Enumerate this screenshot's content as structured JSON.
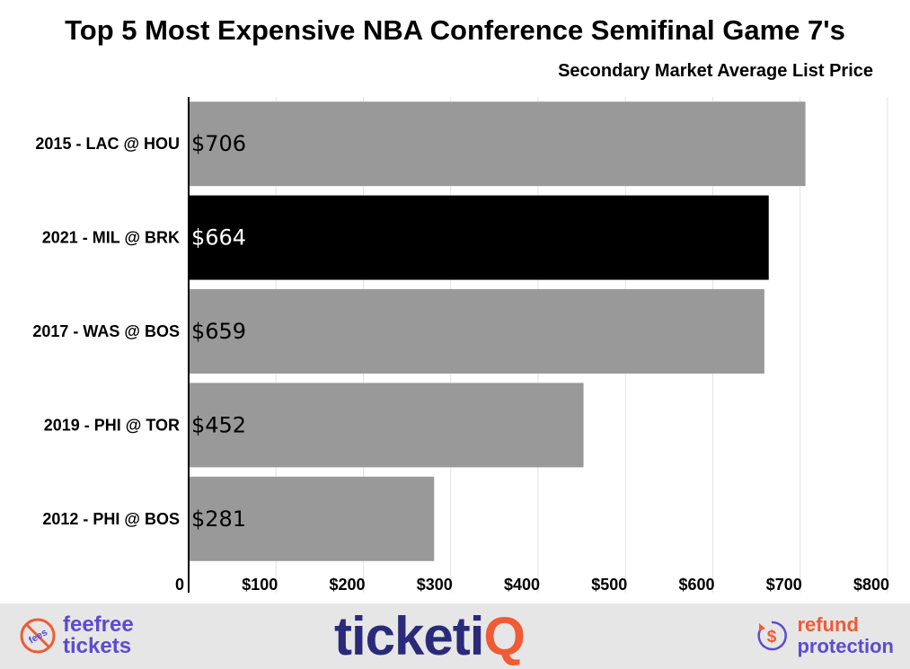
{
  "chart_data": {
    "type": "bar",
    "orientation": "horizontal",
    "title": "Top 5 Most Expensive NBA Conference Semifinal Game 7's",
    "subtitle": "Secondary Market Average List Price",
    "categories": [
      "2015 - LAC @ HOU",
      "2021 - MIL @ BRK",
      "2017 - WAS @ BOS",
      "2019 - PHI @ TOR",
      "2012 - PHI @ BOS"
    ],
    "values": [
      706,
      664,
      659,
      452,
      281
    ],
    "value_labels": [
      "$706",
      "$664",
      "$659",
      "$452",
      "$281"
    ],
    "highlight_index": 1,
    "colors": {
      "bar": "#999999",
      "highlight": "#000000",
      "grid": "#e3e3e3"
    },
    "xlim": [
      0,
      800
    ],
    "xticks": [
      0,
      100,
      200,
      300,
      400,
      500,
      600,
      700,
      800
    ],
    "xtick_labels": [
      "0",
      "$100",
      "$200",
      "$300",
      "$400",
      "$500",
      "$600",
      "$700",
      "$800"
    ],
    "grid": true,
    "legend": "none"
  },
  "footer": {
    "fee_free": {
      "icon": "no-fees-icon",
      "icon_text": "fees",
      "line1": "feefree",
      "line2": "tickets"
    },
    "brand": {
      "main": "ticketi",
      "accent": "Q"
    },
    "refund": {
      "icon": "dollar-refund-icon",
      "line1": "refund",
      "line2": "protection"
    }
  }
}
